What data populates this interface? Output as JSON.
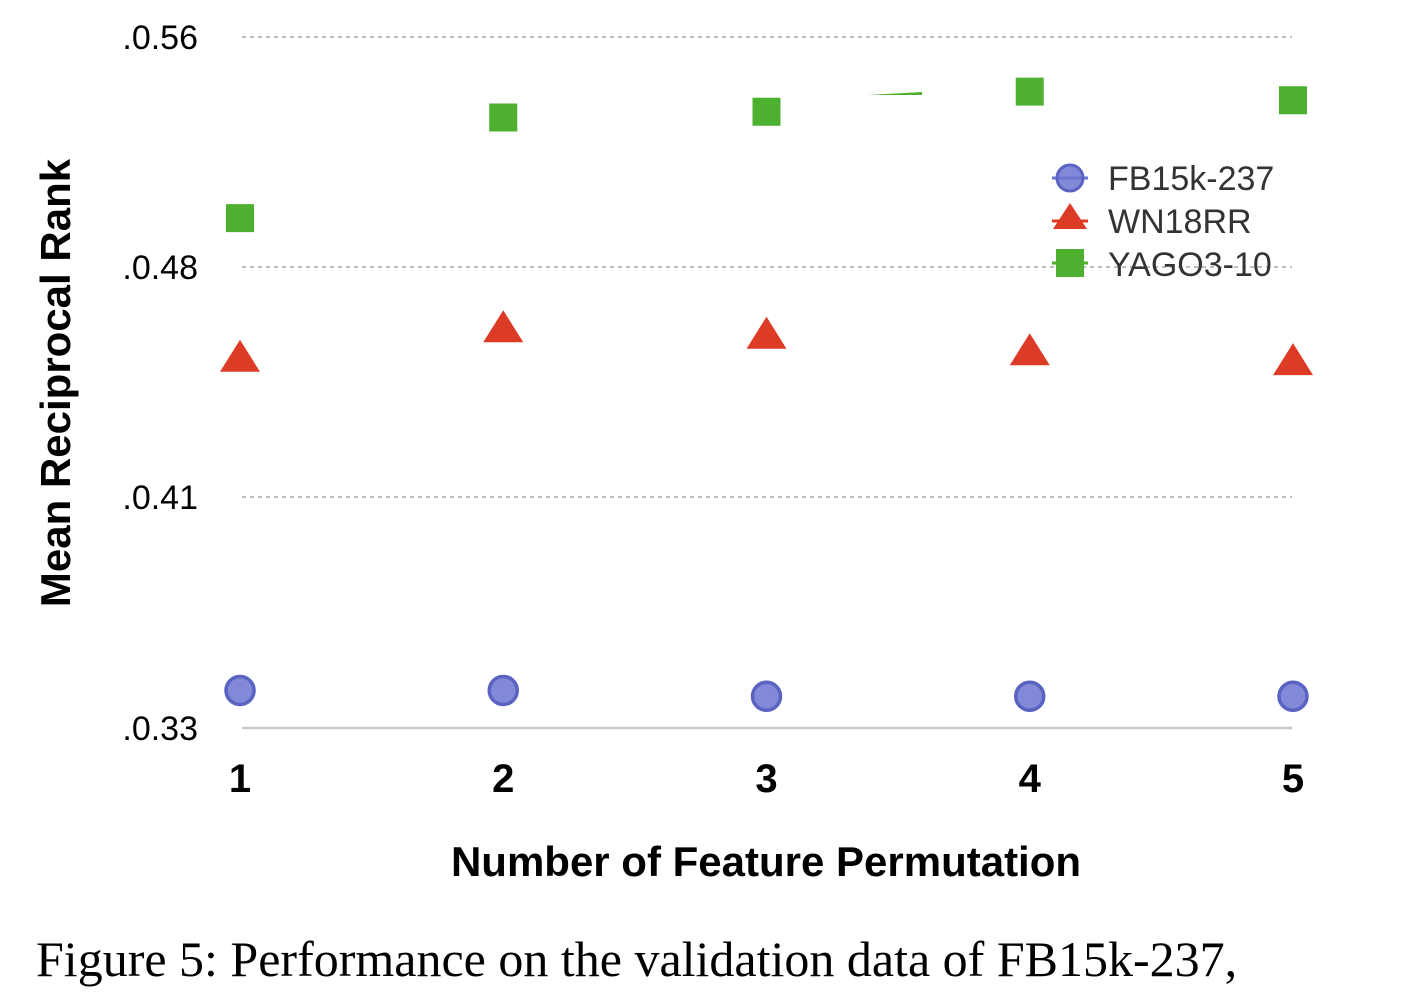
{
  "chart_data": {
    "type": "scatter",
    "xlabel": "Number of Feature Permutation",
    "ylabel": "Mean Reciprocal Rank",
    "x": [
      1,
      2,
      3,
      4,
      5
    ],
    "x_ticks": [
      "1",
      "2",
      "3",
      "4",
      "5"
    ],
    "y_ticks": [
      {
        "value": 0.56,
        "label": ".0.56"
      },
      {
        "value": 0.48,
        "label": ".0.48"
      },
      {
        "value": 0.41,
        "label": ".0.41"
      },
      {
        "value": 0.33,
        "label": ".0.33"
      }
    ],
    "grid": true,
    "legend_position": "top-right",
    "series": [
      {
        "name": "FB15k-237",
        "marker": "circle",
        "color": "#6b74d1",
        "values": [
          0.343,
          0.343,
          0.341,
          0.341,
          0.341
        ]
      },
      {
        "name": "WN18RR",
        "marker": "triangle",
        "color": "#dc3b26",
        "values": [
          0.452,
          0.461,
          0.459,
          0.454,
          0.451
        ]
      },
      {
        "name": "YAGO3-10",
        "marker": "square",
        "color": "#4db02f",
        "values": [
          0.497,
          0.532,
          0.534,
          0.541,
          0.538
        ]
      }
    ]
  },
  "caption": {
    "line1": "Figure 5: Performance on the validation data of FB15k-237,"
  }
}
